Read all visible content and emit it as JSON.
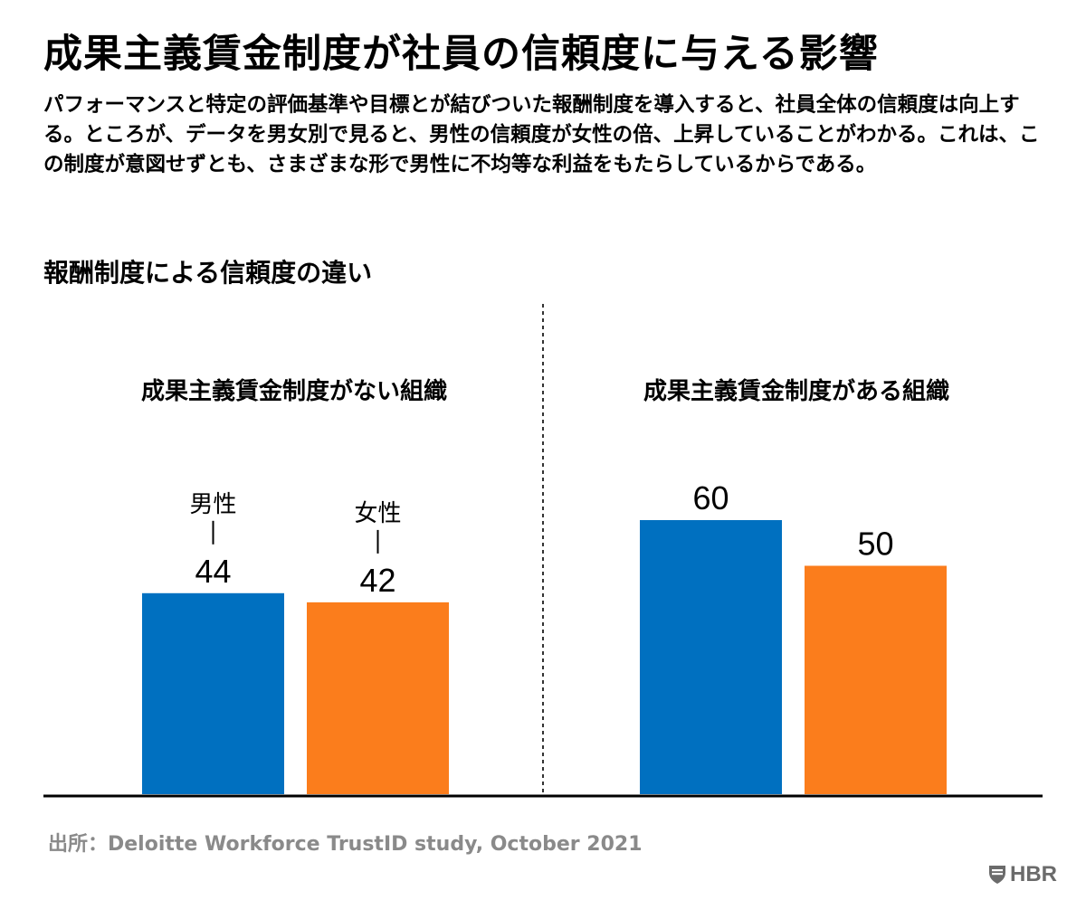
{
  "header": {
    "title": "成果主義賃金制度が社員の信頼度に与える影響",
    "subtitle": "パフォーマンスと特定の評価基準や目標とが結びついた報酬制度を導入すると、社員全体の信頼度は向上する。ところが、データを男女別で見ると、男性の信頼度が女性の倍、上昇していることがわかる。これは、この制度が意図せずとも、さまざまな形で男性に不均等な利益をもたらしているからである。"
  },
  "chart_section": {
    "title": "報酬制度による信頼度の違い"
  },
  "chart_data": {
    "type": "bar",
    "title": "報酬制度による信頼度の違い",
    "categories": [
      "成果主義賃金制度がない組織",
      "成果主義賃金制度がある組織"
    ],
    "series": [
      {
        "name": "男性",
        "values": [
          44,
          60
        ],
        "color": "#0070c0"
      },
      {
        "name": "女性",
        "values": [
          42,
          50
        ],
        "color": "#fb7d1c"
      }
    ],
    "ylim": [
      0,
      60
    ],
    "grid": false,
    "legend": "direct labels above first group bars"
  },
  "footer": {
    "source": "出所：Deloitte Workforce TrustID study, October 2021",
    "logo_text": "HBR",
    "logo_icon": "shield-icon"
  },
  "colors": {
    "axis": "#000000",
    "divider": "#333333",
    "source_text": "#8a8a8a",
    "logo": "#6b6b6b"
  }
}
